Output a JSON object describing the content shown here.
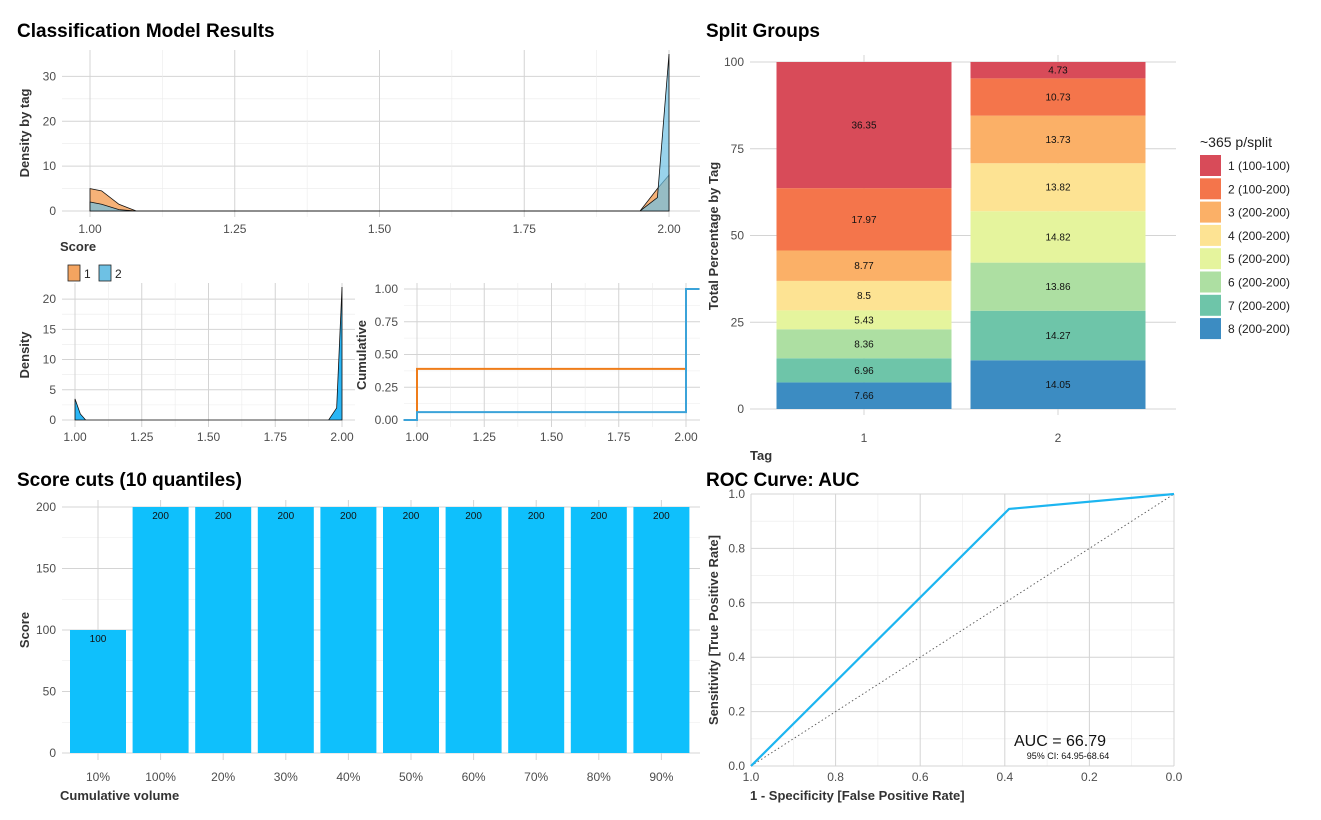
{
  "titles": {
    "main": "Classification Model Results",
    "split": "Split Groups",
    "cuts": "Score cuts (10 quantiles)",
    "roc": "ROC Curve: AUC"
  },
  "chart_data": [
    {
      "id": "density_by_tag",
      "type": "area",
      "xlabel": "Score",
      "ylabel": "Density by tag",
      "xlim": [
        1.0,
        2.0
      ],
      "ylim": [
        0,
        35
      ],
      "x_ticks": [
        "1.00",
        "1.25",
        "1.50",
        "1.75",
        "2.00"
      ],
      "y_ticks": [
        "0",
        "10",
        "20",
        "30"
      ],
      "legend": {
        "labels": [
          "1",
          "2"
        ],
        "position": "bottom-left"
      },
      "series": [
        {
          "name": "1",
          "color": "#f4a460",
          "x": [
            1.0,
            1.02,
            1.05,
            1.08,
            1.95,
            1.98,
            2.0
          ],
          "y": [
            5,
            4.5,
            1.5,
            0,
            0,
            5,
            8
          ]
        },
        {
          "name": "2",
          "color": "#6ec1e4",
          "x": [
            1.0,
            1.02,
            1.05,
            1.08,
            1.95,
            1.98,
            2.0
          ],
          "y": [
            2,
            1.5,
            0.3,
            0,
            0,
            3,
            35
          ]
        }
      ]
    },
    {
      "id": "density_total",
      "type": "area",
      "xlabel": "",
      "ylabel": "Density",
      "xlim": [
        1.0,
        2.0
      ],
      "ylim": [
        0,
        22
      ],
      "x_ticks": [
        "1.00",
        "1.25",
        "1.50",
        "1.75",
        "2.00"
      ],
      "y_ticks": [
        "0",
        "5",
        "10",
        "15",
        "20"
      ],
      "series": [
        {
          "name": "",
          "color": "#29b6f6",
          "x": [
            1.0,
            1.02,
            1.04,
            1.95,
            1.98,
            2.0
          ],
          "y": [
            3.5,
            1,
            0,
            0,
            2,
            22
          ]
        }
      ]
    },
    {
      "id": "cumulative",
      "type": "line",
      "xlabel": "",
      "ylabel": "Cumulative",
      "xlim": [
        1.0,
        2.0
      ],
      "ylim": [
        0,
        1
      ],
      "x_ticks": [
        "1.00",
        "1.25",
        "1.50",
        "1.75",
        "2.00"
      ],
      "y_ticks": [
        "0.00",
        "0.25",
        "0.50",
        "0.75",
        "1.00"
      ],
      "series": [
        {
          "name": "",
          "color": "#ef7d1a",
          "x": [
            0.95,
            1.0,
            1.0,
            2.0
          ],
          "y": [
            0,
            0,
            0.39,
            0.39
          ]
        },
        {
          "name": "",
          "color": "#3ba3d9",
          "x": [
            0.95,
            1.0,
            1.0,
            2.0,
            2.0,
            2.05
          ],
          "y": [
            0,
            0,
            0.06,
            0.06,
            1.0,
            1.0
          ]
        }
      ]
    },
    {
      "id": "split_groups",
      "type": "bar",
      "stacked": true,
      "xlabel": "Tag",
      "ylabel": "Total Percentage by Tag",
      "categories": [
        "1",
        "2"
      ],
      "ylim": [
        0,
        100
      ],
      "y_ticks": [
        "0",
        "25",
        "50",
        "75",
        "100"
      ],
      "legend": {
        "title": "~365 p/split",
        "position": "right"
      },
      "series": [
        {
          "name": "8 (200-200)",
          "color": "#3c8cc2",
          "values": [
            7.66,
            14.05
          ]
        },
        {
          "name": "7 (200-200)",
          "color": "#6ec5a9",
          "values": [
            6.96,
            14.27
          ]
        },
        {
          "name": "6 (200-200)",
          "color": "#addfa2",
          "values": [
            8.36,
            13.86
          ]
        },
        {
          "name": "5 (200-200)",
          "color": "#e5f49d",
          "values": [
            5.43,
            14.82
          ]
        },
        {
          "name": "4 (200-200)",
          "color": "#fde393",
          "values": [
            8.5,
            13.82
          ]
        },
        {
          "name": "3 (200-200)",
          "color": "#fbb067",
          "values": [
            8.77,
            13.73
          ]
        },
        {
          "name": "2 (100-200)",
          "color": "#f4754b",
          "values": [
            17.97,
            10.73
          ]
        },
        {
          "name": "1 (100-100)",
          "color": "#d84b59",
          "values": [
            36.35,
            4.73
          ]
        }
      ]
    },
    {
      "id": "score_cuts",
      "type": "bar",
      "xlabel": "Cumulative volume",
      "ylabel": "Score",
      "color": "#0fc0fc",
      "categories": [
        "10%",
        "100%",
        "20%",
        "30%",
        "40%",
        "50%",
        "60%",
        "70%",
        "80%",
        "90%"
      ],
      "values": [
        100,
        200,
        200,
        200,
        200,
        200,
        200,
        200,
        200,
        200
      ],
      "value_labels": [
        "100",
        "200",
        "200",
        "200",
        "200",
        "200",
        "200",
        "200",
        "200",
        "200"
      ],
      "ylim": [
        0,
        200
      ],
      "y_ticks": [
        "0",
        "50",
        "100",
        "150",
        "200"
      ]
    },
    {
      "id": "roc",
      "type": "line",
      "xlabel": "1 - Specificity [False Positive Rate]",
      "ylabel": "Sensitivity [True Positive Rate]",
      "x_reversed": true,
      "xlim": [
        1.0,
        0.0
      ],
      "ylim": [
        0,
        1
      ],
      "x_ticks": [
        "1.0",
        "0.8",
        "0.6",
        "0.4",
        "0.2",
        "0.0"
      ],
      "y_ticks": [
        "0.0",
        "0.2",
        "0.4",
        "0.6",
        "0.8",
        "1.0"
      ],
      "color": "#1cb5f0",
      "series": [
        {
          "name": "",
          "x": [
            1.0,
            0.39,
            0.0
          ],
          "y": [
            0.0,
            0.945,
            1.0
          ]
        }
      ],
      "annotation": {
        "auc": "AUC = 66.79",
        "ci": "95% CI: 64.95-68.64"
      }
    }
  ]
}
